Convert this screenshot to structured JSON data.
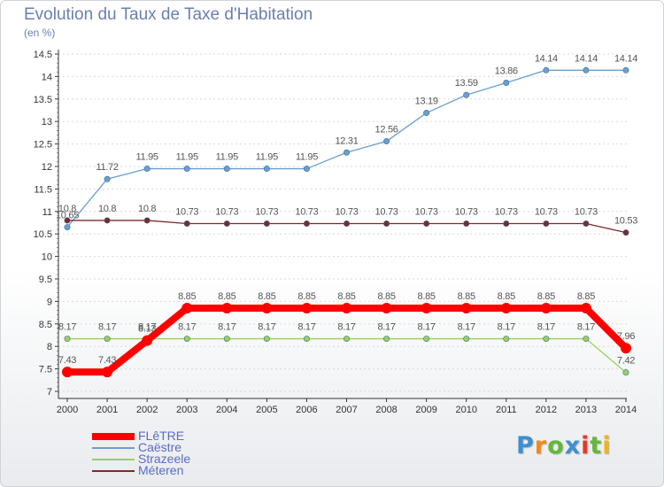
{
  "chart_data": {
    "type": "line",
    "title": "Evolution du Taux de Taxe d'Habitation",
    "subtitle": "(en %)",
    "x": [
      "2000",
      "2001",
      "2002",
      "2003",
      "2004",
      "2005",
      "2006",
      "2007",
      "2008",
      "2009",
      "2010",
      "2011",
      "2012",
      "2013",
      "2014"
    ],
    "y_ticks": [
      "7",
      "7.5",
      "8",
      "8.5",
      "9",
      "9.5",
      "10",
      "10.5",
      "11",
      "11.5",
      "12",
      "12.5",
      "13",
      "13.5",
      "14",
      "14.5"
    ],
    "ylim": [
      7,
      14.5
    ],
    "series": [
      {
        "name": "FLêTRE",
        "color": "#ff0000",
        "values": [
          7.43,
          7.43,
          8.13,
          8.85,
          8.85,
          8.85,
          8.85,
          8.85,
          8.85,
          8.85,
          8.85,
          8.85,
          8.85,
          8.85,
          7.96
        ]
      },
      {
        "name": "Caëstre",
        "color": "#6a9fcf",
        "values": [
          10.65,
          11.72,
          11.95,
          11.95,
          11.95,
          11.95,
          11.95,
          12.31,
          12.56,
          13.19,
          13.59,
          13.86,
          14.14,
          14.14,
          14.14
        ]
      },
      {
        "name": "Strazeele",
        "color": "#99d05b",
        "values": [
          8.17,
          8.17,
          8.17,
          8.17,
          8.17,
          8.17,
          8.17,
          8.17,
          8.17,
          8.17,
          8.17,
          8.17,
          8.17,
          8.17,
          7.42
        ]
      },
      {
        "name": "Méteren",
        "color": "#7a2b2b",
        "values": [
          10.8,
          10.8,
          10.8,
          10.73,
          10.73,
          10.73,
          10.73,
          10.73,
          10.73,
          10.73,
          10.73,
          10.73,
          10.73,
          10.73,
          10.53
        ]
      }
    ],
    "legend_position": "bottom-left"
  },
  "logo": {
    "letters": [
      "P",
      "r",
      "o",
      "x",
      "i",
      "t",
      "i"
    ],
    "colors": [
      "#3e8fd0",
      "#f28a1a",
      "#63b83a",
      "#3e8fd0",
      "#e23b2a",
      "#63b83a",
      "#f2b31a"
    ]
  }
}
